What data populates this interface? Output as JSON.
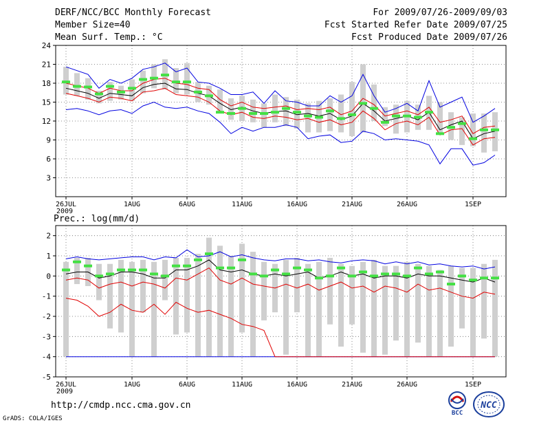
{
  "header": {
    "title": "DERF/NCC/BCC Monthly Forecast",
    "member_size": "Member Size=40",
    "variable": "Mean Surf. Temp.: °C",
    "period": "For 2009/07/26-2009/09/03",
    "started": "Fcst Started Refer Date 2009/07/25",
    "produced": "Fcst Produced Date 2009/07/26"
  },
  "footer": {
    "url": "http://cmdp.ncc.cma.gov.cn",
    "credit": "GrADS: COLA/IGES",
    "logo_bcc": "BCC",
    "logo_ncc": "NCC"
  },
  "colors": {
    "box": "#cfcfcf",
    "mean": "#000000",
    "median": "#44e044",
    "band_inner": "#e00000",
    "band_outer": "#0000e0"
  },
  "chart_data": [
    {
      "type": "box",
      "name": "temperature",
      "title": "",
      "ylabel": "",
      "ylim": [
        0,
        24
      ],
      "yticks": [
        3,
        6,
        9,
        12,
        15,
        18,
        21,
        24
      ],
      "xlim": [
        0,
        40
      ],
      "xticks": [
        {
          "day": 0,
          "label": "26JUL",
          "sub": "2009"
        },
        {
          "day": 6,
          "label": "1AUG"
        },
        {
          "day": 11,
          "label": "6AUG"
        },
        {
          "day": 16,
          "label": "11AUG"
        },
        {
          "day": 21,
          "label": "16AUG"
        },
        {
          "day": 26,
          "label": "21AUG"
        },
        {
          "day": 31,
          "label": "26AUG"
        },
        {
          "day": 37,
          "label": "1SEP"
        }
      ],
      "series": {
        "box_low": [
          16.2,
          16.0,
          15.4,
          14.8,
          15.2,
          15.4,
          15.2,
          16.4,
          17.2,
          17.0,
          16.4,
          16.2,
          15.0,
          14.6,
          13.6,
          12.2,
          12.0,
          11.8,
          11.0,
          11.8,
          11.2,
          10.8,
          10.2,
          10.2,
          10.4,
          10.2,
          9.6,
          10.2,
          12.0,
          11.2,
          10.0,
          10.2,
          10.6,
          10.6,
          10.2,
          9.0,
          8.2,
          8.0,
          7.0,
          7.2
        ],
        "box_high": [
          20.6,
          19.6,
          18.8,
          16.8,
          18.2,
          17.6,
          18.6,
          20.0,
          21.0,
          21.8,
          20.4,
          21.2,
          18.2,
          17.6,
          17.0,
          15.6,
          16.0,
          15.4,
          14.8,
          16.2,
          15.8,
          15.4,
          14.8,
          15.2,
          15.6,
          16.2,
          18.2,
          21.0,
          17.8,
          14.2,
          14.6,
          15.2,
          14.6,
          16.0,
          15.0,
          13.4,
          12.6,
          13.2,
          13.2,
          13.4
        ],
        "median": [
          18.2,
          17.5,
          17.4,
          16.3,
          17.5,
          16.6,
          17.2,
          18.6,
          18.8,
          19.3,
          18.2,
          18.2,
          16.6,
          16.0,
          13.4,
          13.2,
          14.0,
          13.2,
          13.2,
          13.4,
          14.0,
          13.4,
          12.8,
          12.6,
          13.6,
          12.4,
          13.0,
          14.8,
          14.0,
          11.8,
          12.8,
          12.8,
          12.6,
          13.4,
          10.0,
          11.0,
          11.6,
          9.2,
          10.6,
          10.6
        ],
        "mean": [
          17.2,
          16.8,
          16.4,
          15.6,
          16.4,
          16.2,
          16.0,
          17.3,
          17.8,
          18.0,
          17.1,
          17.0,
          16.4,
          16.0,
          14.8,
          13.8,
          14.2,
          13.6,
          13.2,
          13.5,
          13.6,
          13.0,
          13.2,
          12.8,
          13.2,
          12.2,
          12.8,
          14.8,
          13.6,
          12.0,
          12.4,
          12.8,
          12.2,
          13.4,
          10.6,
          11.4,
          12.0,
          9.2,
          10.0,
          10.4
        ],
        "inner_low": [
          16.4,
          16.0,
          15.6,
          15.0,
          15.8,
          15.6,
          15.2,
          16.6,
          16.8,
          17.2,
          16.2,
          16.0,
          15.8,
          15.0,
          13.6,
          13.0,
          13.4,
          12.6,
          12.4,
          12.8,
          12.6,
          12.2,
          12.4,
          11.8,
          12.2,
          11.4,
          11.8,
          13.6,
          12.4,
          10.6,
          11.6,
          12.0,
          11.4,
          12.6,
          9.8,
          10.6,
          10.8,
          8.2,
          9.2,
          9.4
        ],
        "inner_high": [
          18.0,
          17.6,
          17.2,
          16.4,
          17.2,
          16.8,
          16.8,
          18.0,
          18.6,
          18.8,
          18.0,
          17.8,
          17.2,
          17.0,
          15.4,
          14.4,
          15.0,
          14.2,
          14.0,
          14.2,
          14.4,
          13.8,
          14.0,
          13.8,
          14.2,
          13.0,
          13.6,
          15.6,
          14.6,
          12.8,
          13.2,
          13.6,
          13.0,
          14.2,
          11.8,
          12.2,
          12.8,
          10.0,
          11.0,
          11.2
        ],
        "outer_low": [
          13.8,
          14.0,
          13.6,
          13.0,
          13.6,
          13.8,
          13.2,
          14.4,
          15.0,
          14.2,
          14.0,
          14.2,
          13.6,
          13.2,
          11.8,
          10.0,
          11.0,
          10.4,
          11.0,
          11.0,
          11.4,
          11.0,
          9.2,
          9.6,
          9.8,
          8.6,
          8.8,
          10.4,
          10.0,
          9.0,
          9.2,
          9.0,
          8.8,
          8.2,
          5.2,
          7.6,
          7.6,
          5.0,
          5.4,
          6.6
        ],
        "outer_high": [
          20.6,
          20.0,
          19.4,
          17.2,
          18.6,
          18.0,
          18.8,
          20.2,
          20.6,
          21.2,
          19.8,
          20.4,
          18.2,
          18.0,
          17.2,
          16.2,
          16.2,
          16.6,
          14.8,
          16.8,
          15.2,
          15.0,
          14.4,
          14.4,
          16.0,
          15.0,
          16.0,
          19.4,
          16.0,
          13.4,
          14.0,
          14.8,
          13.6,
          18.4,
          14.2,
          15.0,
          15.8,
          11.8,
          12.8,
          14.0
        ]
      }
    },
    {
      "type": "box",
      "name": "precipitation",
      "title": "Prec.: log(mm/d)",
      "ylabel": "",
      "ylim": [
        -5,
        2.5
      ],
      "yticks": [
        -5,
        -4,
        -3,
        -2,
        -1,
        0,
        1,
        2
      ],
      "xlim": [
        0,
        40
      ],
      "xticks": [
        {
          "day": 0,
          "label": "26JUL",
          "sub": "2009"
        },
        {
          "day": 6,
          "label": "1AUG"
        },
        {
          "day": 11,
          "label": "6AUG"
        },
        {
          "day": 16,
          "label": "11AUG"
        },
        {
          "day": 21,
          "label": "16AUG"
        },
        {
          "day": 26,
          "label": "21AUG"
        },
        {
          "day": 31,
          "label": "26AUG"
        },
        {
          "day": 37,
          "label": "1SEP"
        }
      ],
      "series": {
        "box_low": [
          -4,
          -0.4,
          -0.5,
          -1.2,
          -2.6,
          -2.8,
          -4,
          -1.8,
          -4,
          -1.2,
          -2.9,
          -2.8,
          -4,
          -4,
          -4,
          -4,
          -2.8,
          -4,
          -2.2,
          -1.8,
          -3.9,
          -1.8,
          -4,
          -4,
          -2.4,
          -3.5,
          -2.4,
          -3.8,
          -4,
          -3.9,
          -3.2,
          -4,
          -3.3,
          -4,
          -4,
          -3.5,
          -2.6,
          -4,
          -3.1,
          -4
        ],
        "box_high": [
          0.7,
          0.9,
          0.9,
          0.6,
          0.6,
          0.8,
          0.7,
          0.8,
          0.7,
          0.8,
          0.9,
          0.9,
          1.1,
          1.9,
          1.5,
          1.0,
          1.6,
          1.2,
          0.7,
          0.6,
          0.8,
          0.9,
          0.6,
          0.7,
          0.9,
          0.6,
          0.5,
          0.7,
          0.8,
          0.5,
          0.5,
          0.7,
          0.6,
          0.5,
          0.3,
          0.5,
          0.4,
          0.4,
          0.6,
          0.8
        ],
        "median": [
          0.3,
          0.7,
          0.5,
          0.0,
          0.1,
          0.3,
          0.3,
          0.3,
          0.1,
          0.0,
          0.5,
          0.5,
          0.8,
          1.1,
          0.4,
          0.4,
          0.8,
          0.1,
          0.0,
          0.3,
          0.1,
          0.4,
          0.3,
          -0.1,
          0.0,
          0.4,
          0.0,
          0.2,
          0.0,
          0.1,
          0.1,
          0.0,
          0.4,
          0.1,
          0.2,
          -0.4,
          0.0,
          -0.2,
          -0.1,
          -0.1
        ],
        "mean": [
          0.1,
          0.2,
          0.2,
          -0.1,
          0.0,
          0.2,
          0.2,
          0.1,
          -0.1,
          -0.1,
          0.3,
          0.3,
          0.5,
          0.8,
          0.3,
          0.2,
          0.3,
          0.1,
          0.0,
          0.1,
          0.0,
          0.1,
          0.2,
          -0.1,
          0.0,
          0.2,
          0.0,
          0.1,
          -0.1,
          0.0,
          0.0,
          -0.1,
          0.1,
          0.0,
          0.0,
          -0.1,
          -0.2,
          -0.3,
          -0.1,
          -0.3
        ],
        "inner_low": [
          -1.1,
          -1.2,
          -1.5,
          -2.0,
          -1.8,
          -1.4,
          -1.7,
          -1.8,
          -1.4,
          -1.9,
          -1.3,
          -1.6,
          -1.8,
          -1.7,
          -1.9,
          -2.1,
          -2.4,
          -2.5,
          -2.7,
          -4,
          -4,
          -4,
          -4,
          -4,
          -4,
          -4,
          -4,
          -4,
          -4,
          -4,
          -4,
          -4,
          -4,
          -4,
          -4,
          -4,
          -4,
          -4,
          -4,
          -4
        ],
        "inner_high": [
          -0.2,
          -0.1,
          -0.2,
          -0.6,
          -0.4,
          -0.3,
          -0.5,
          -0.3,
          -0.4,
          -0.6,
          -0.1,
          -0.2,
          0.1,
          0.4,
          -0.2,
          -0.4,
          -0.1,
          -0.4,
          -0.5,
          -0.6,
          -0.4,
          -0.6,
          -0.4,
          -0.7,
          -0.5,
          -0.3,
          -0.6,
          -0.5,
          -0.8,
          -0.5,
          -0.6,
          -0.8,
          -0.4,
          -0.7,
          -0.6,
          -0.8,
          -1.0,
          -1.1,
          -0.8,
          -0.9
        ],
        "outer_low": [
          -4,
          -4,
          -4,
          -4,
          -4,
          -4,
          -4,
          -4,
          -4,
          -4,
          -4,
          -4,
          -4,
          -4,
          -4,
          -4,
          -4,
          -4,
          -4,
          -4,
          -4,
          -4,
          -4,
          -4,
          -4,
          -4,
          -4,
          -4,
          -4,
          -4,
          -4,
          -4,
          -4,
          -4,
          -4,
          -4,
          -4,
          -4,
          -4,
          -4
        ],
        "outer_high": [
          0.85,
          0.95,
          0.85,
          0.8,
          0.85,
          0.9,
          0.95,
          0.95,
          0.8,
          0.95,
          0.9,
          1.3,
          0.95,
          1.0,
          1.2,
          0.95,
          1.05,
          0.9,
          0.8,
          0.75,
          0.85,
          0.85,
          0.75,
          0.8,
          0.7,
          0.65,
          0.75,
          0.8,
          0.75,
          0.6,
          0.7,
          0.6,
          0.7,
          0.55,
          0.6,
          0.5,
          0.45,
          0.5,
          0.35,
          0.45
        ]
      }
    }
  ]
}
